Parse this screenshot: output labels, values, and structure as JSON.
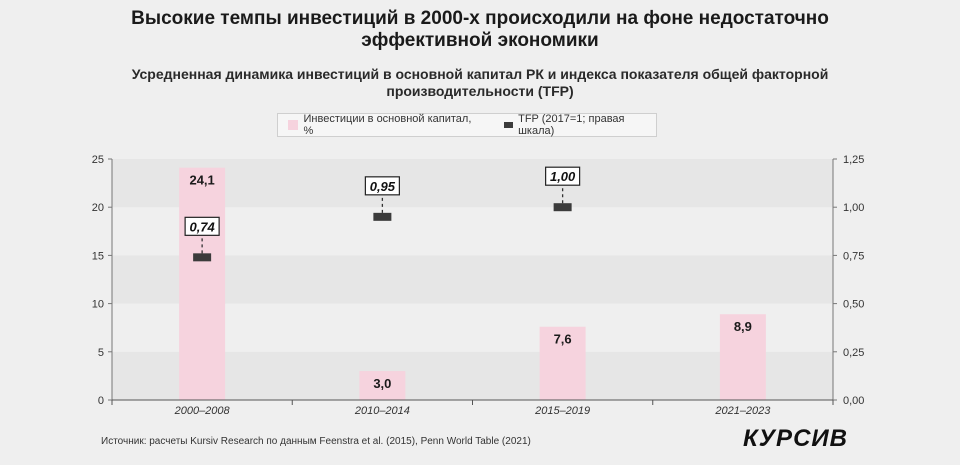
{
  "title": "Высокие темпы инвестиций в 2000-х происходили на фоне недостаточно\nэффективной экономики",
  "subtitle": "Усредненная динамика инвестиций в основной капитал РК и индекса показателя общей факторной\nпроизводительности (TFP)",
  "legend": {
    "bars": "Инвестиции в основной капитал, %",
    "tfp": "TFP (2017=1; правая шкала)"
  },
  "source": "Источник: расчеты Kursiv Research по данным Feenstra et al. (2015), Penn World Table (2021)",
  "logo": "КУРСИВ",
  "chart_data": {
    "type": "bar",
    "categories": [
      "2000–2008",
      "2010–2014",
      "2015–2019",
      "2021–2023"
    ],
    "series": [
      {
        "name": "Инвестиции в основной капитал, %",
        "values": [
          24.1,
          3.0,
          7.6,
          8.9
        ],
        "labels": [
          "24,1",
          "3,0",
          "7,6",
          "8,9"
        ],
        "color": "#f6d3de",
        "axis": "left"
      },
      {
        "name": "TFP (2017=1; правая шкала)",
        "values": [
          0.74,
          0.95,
          1.0,
          null
        ],
        "labels": [
          "0,74",
          "0,95",
          "1,00",
          ""
        ],
        "color": "#3b3b3b",
        "axis": "right"
      }
    ],
    "ylim": [
      0,
      25
    ],
    "yticks": [
      "0",
      "5",
      "10",
      "15",
      "20",
      "25"
    ],
    "y2lim": [
      0,
      1.25
    ],
    "y2ticks": [
      "0,00",
      "0,25",
      "0,50",
      "0,75",
      "1,00",
      "1,25"
    ],
    "grid": "alternating bands"
  }
}
